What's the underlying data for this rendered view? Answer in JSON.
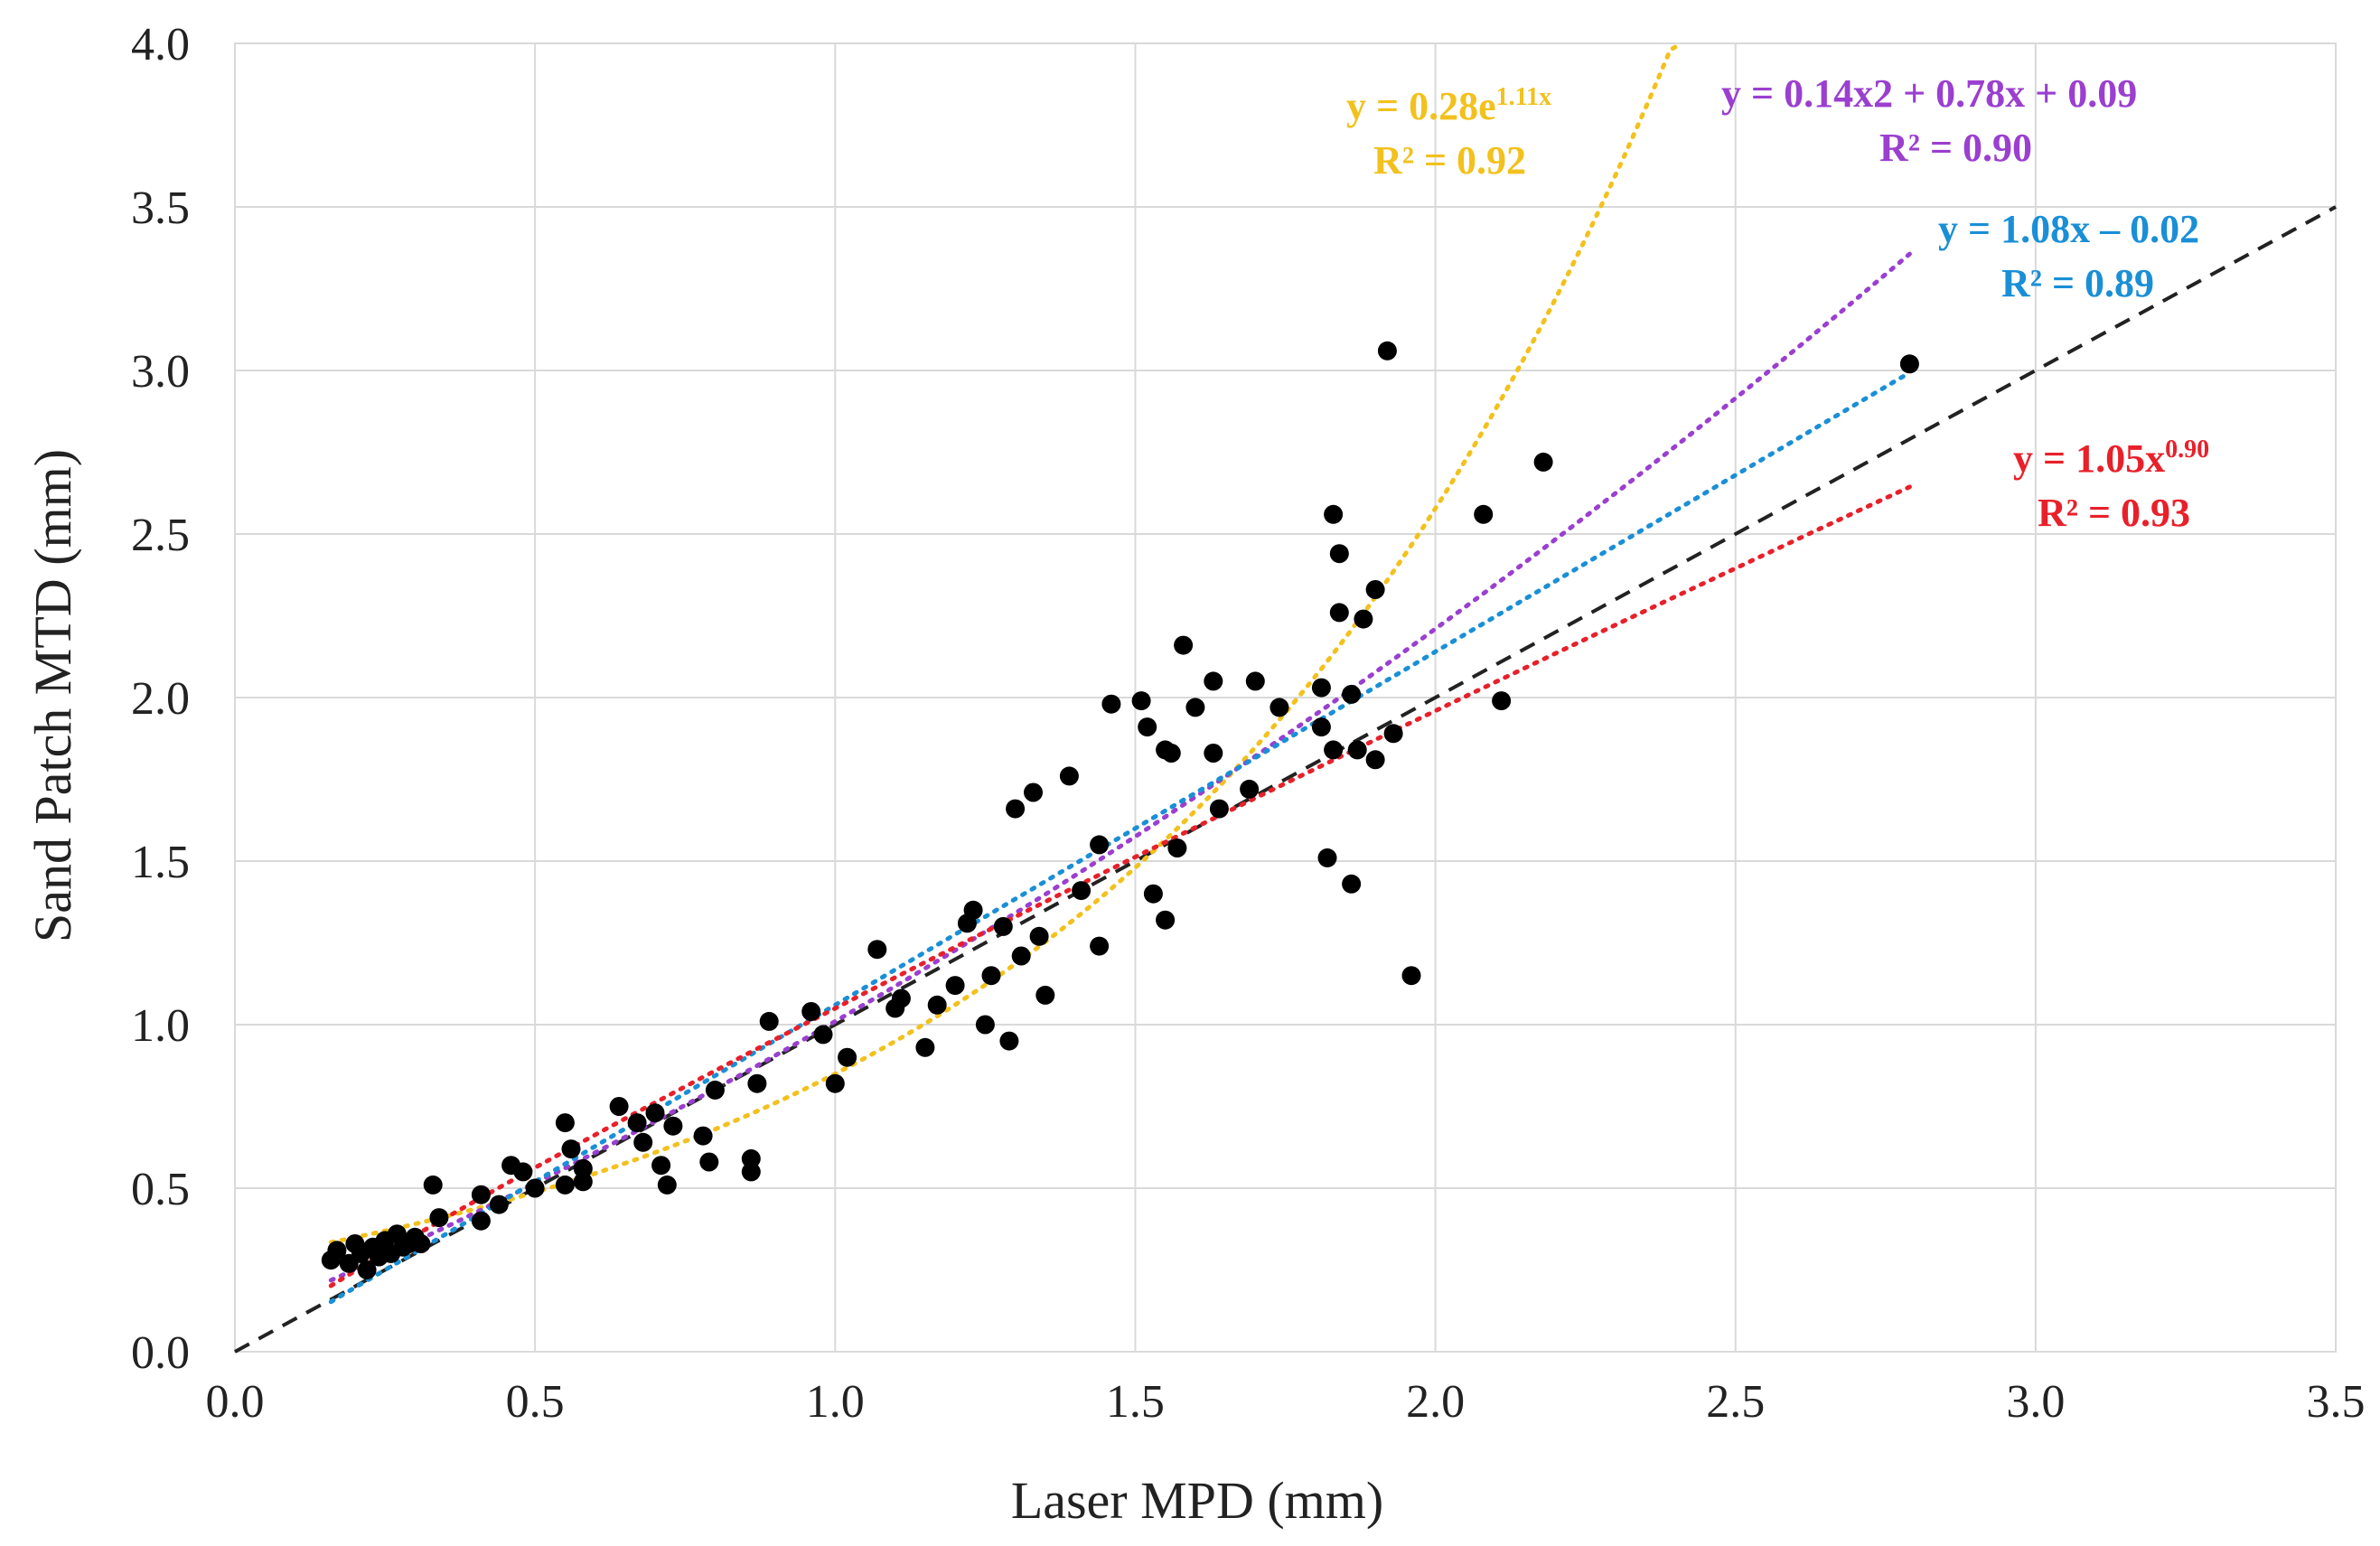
{
  "chart_data": {
    "type": "scatter",
    "title": "",
    "xlabel": "Laser MPD (mm)",
    "ylabel": "Sand Patch MTD (mm)",
    "xlim": [
      0,
      3.5
    ],
    "ylim": [
      0,
      4.0
    ],
    "x_ticks": [
      "0.0",
      "0.5",
      "1.0",
      "1.5",
      "2.0",
      "2.5",
      "3.0",
      "3.5"
    ],
    "y_ticks": [
      "0.0",
      "0.5",
      "1.0",
      "1.5",
      "2.0",
      "2.5",
      "3.0",
      "3.5",
      "4.0"
    ],
    "grid": true,
    "points": [
      [
        0.16,
        0.28
      ],
      [
        0.17,
        0.31
      ],
      [
        0.19,
        0.27
      ],
      [
        0.2,
        0.33
      ],
      [
        0.21,
        0.3
      ],
      [
        0.22,
        0.25
      ],
      [
        0.23,
        0.32
      ],
      [
        0.24,
        0.29
      ],
      [
        0.25,
        0.34
      ],
      [
        0.26,
        0.3
      ],
      [
        0.27,
        0.36
      ],
      [
        0.28,
        0.32
      ],
      [
        0.29,
        0.33
      ],
      [
        0.3,
        0.35
      ],
      [
        0.31,
        0.33
      ],
      [
        0.33,
        0.51
      ],
      [
        0.34,
        0.41
      ],
      [
        0.41,
        0.4
      ],
      [
        0.41,
        0.48
      ],
      [
        0.44,
        0.45
      ],
      [
        0.46,
        0.57
      ],
      [
        0.48,
        0.55
      ],
      [
        0.5,
        0.5
      ],
      [
        0.55,
        0.7
      ],
      [
        0.55,
        0.51
      ],
      [
        0.56,
        0.62
      ],
      [
        0.58,
        0.56
      ],
      [
        0.58,
        0.52
      ],
      [
        0.64,
        0.75
      ],
      [
        0.67,
        0.7
      ],
      [
        0.68,
        0.64
      ],
      [
        0.7,
        0.73
      ],
      [
        0.71,
        0.57
      ],
      [
        0.72,
        0.51
      ],
      [
        0.73,
        0.69
      ],
      [
        0.78,
        0.66
      ],
      [
        0.79,
        0.58
      ],
      [
        0.8,
        0.8
      ],
      [
        0.86,
        0.59
      ],
      [
        0.86,
        0.55
      ],
      [
        0.87,
        0.82
      ],
      [
        0.89,
        1.01
      ],
      [
        0.96,
        1.04
      ],
      [
        0.98,
        0.97
      ],
      [
        1.0,
        0.82
      ],
      [
        1.02,
        0.9
      ],
      [
        1.07,
        1.23
      ],
      [
        1.1,
        1.05
      ],
      [
        1.11,
        1.08
      ],
      [
        1.15,
        0.93
      ],
      [
        1.17,
        1.06
      ],
      [
        1.2,
        1.12
      ],
      [
        1.22,
        1.31
      ],
      [
        1.23,
        1.35
      ],
      [
        1.25,
        1.0
      ],
      [
        1.26,
        1.15
      ],
      [
        1.28,
        1.3
      ],
      [
        1.29,
        0.95
      ],
      [
        1.3,
        1.66
      ],
      [
        1.31,
        1.21
      ],
      [
        1.33,
        1.71
      ],
      [
        1.34,
        1.27
      ],
      [
        1.35,
        1.09
      ],
      [
        1.39,
        1.76
      ],
      [
        1.41,
        1.41
      ],
      [
        1.44,
        1.24
      ],
      [
        1.44,
        1.55
      ],
      [
        1.46,
        1.98
      ],
      [
        1.51,
        1.99
      ],
      [
        1.52,
        1.91
      ],
      [
        1.53,
        1.4
      ],
      [
        1.55,
        1.32
      ],
      [
        1.55,
        1.84
      ],
      [
        1.56,
        1.83
      ],
      [
        1.57,
        1.54
      ],
      [
        1.58,
        2.16
      ],
      [
        1.6,
        1.97
      ],
      [
        1.63,
        2.05
      ],
      [
        1.63,
        1.83
      ],
      [
        1.64,
        1.66
      ],
      [
        1.69,
        1.72
      ],
      [
        1.7,
        2.05
      ],
      [
        1.74,
        1.97
      ],
      [
        1.81,
        2.03
      ],
      [
        1.81,
        1.91
      ],
      [
        1.82,
        1.51
      ],
      [
        1.83,
        2.56
      ],
      [
        1.83,
        1.84
      ],
      [
        1.84,
        2.26
      ],
      [
        1.84,
        2.44
      ],
      [
        1.86,
        2.01
      ],
      [
        1.86,
        1.43
      ],
      [
        1.87,
        1.84
      ],
      [
        1.88,
        2.24
      ],
      [
        1.9,
        2.33
      ],
      [
        1.9,
        1.81
      ],
      [
        1.92,
        3.06
      ],
      [
        1.93,
        1.89
      ],
      [
        1.96,
        1.15
      ],
      [
        2.08,
        2.56
      ],
      [
        2.11,
        1.99
      ],
      [
        2.18,
        2.72
      ],
      [
        2.79,
        3.02
      ]
    ],
    "reference_line": {
      "name": "1:1 line",
      "slope": 1,
      "intercept": 0,
      "color": "#222222"
    },
    "fits": [
      {
        "name": "exponential",
        "line1": "y = 0.28e",
        "superscript": "1.11x",
        "line2": "R² = 0.92",
        "color": "#f2c11d",
        "a": 0.28,
        "b": 1.11,
        "model": "exp",
        "x_range": [
          0.16,
          2.41
        ]
      },
      {
        "name": "polynomial",
        "line1": "y = 0.14x2 + 0.78x + 0.09",
        "line2": "R² = 0.90",
        "color": "#9a3fcf",
        "a": 0.14,
        "b": 0.78,
        "c": 0.09,
        "model": "poly2",
        "x_range": [
          0.16,
          2.79
        ]
      },
      {
        "name": "linear",
        "line1": "y = 1.08x – 0.02",
        "line2": "R² = 0.89",
        "color": "#1a8fd6",
        "a": 1.08,
        "b": -0.02,
        "model": "linear",
        "x_range": [
          0.16,
          2.79
        ]
      },
      {
        "name": "power",
        "line1": "y = 1.05x",
        "superscript": "0.90",
        "line2": "R² = 0.93",
        "color": "#e8202a",
        "a": 1.05,
        "b": 0.9,
        "model": "power",
        "x_range": [
          0.16,
          2.79
        ]
      }
    ]
  }
}
